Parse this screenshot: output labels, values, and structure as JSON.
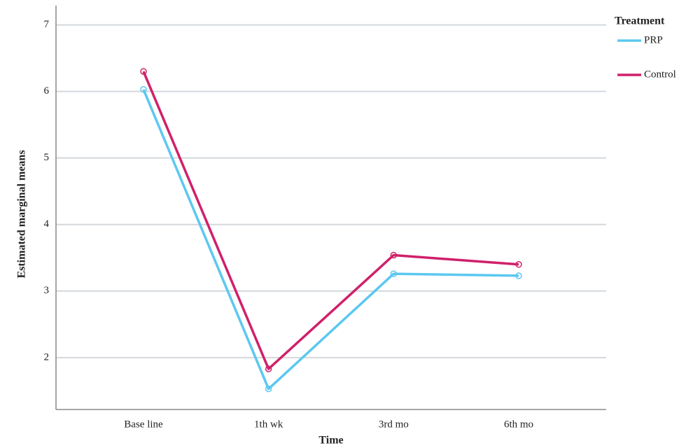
{
  "chart_data": {
    "type": "line",
    "x_label": "Time",
    "y_label": "Estimated marginal means",
    "legend_title": "Treatment",
    "legend": "right",
    "categories": [
      "Base line",
      "1th wk",
      "3rd mo",
      "6th mo"
    ],
    "series": [
      {
        "name": "PRP",
        "color": "#5bc8f0",
        "values": [
          6.03,
          1.53,
          3.26,
          3.23
        ]
      },
      {
        "name": "Control",
        "color": "#d0206a",
        "values": [
          6.3,
          1.83,
          3.54,
          3.4
        ]
      }
    ],
    "ylim": [
      1.22,
      7.29
    ],
    "yticks": [
      2,
      3,
      4,
      5,
      6,
      7
    ],
    "grid": true
  }
}
